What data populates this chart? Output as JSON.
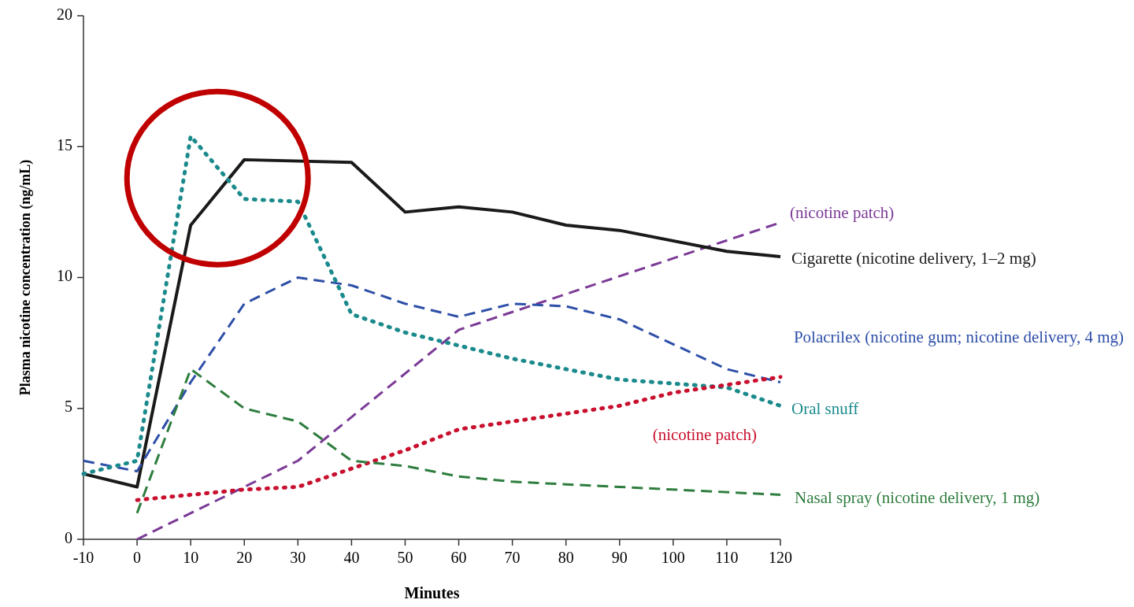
{
  "chart_data": {
    "type": "line",
    "xlabel": "Minutes",
    "ylabel": "Plasma nicotine concentration (ng/mL)",
    "xlim": [
      -10,
      120
    ],
    "ylim": [
      0,
      20
    ],
    "xticks": [
      -10,
      0,
      10,
      20,
      30,
      40,
      50,
      60,
      70,
      80,
      90,
      100,
      110,
      120
    ],
    "yticks": [
      0,
      5,
      10,
      15,
      20
    ],
    "grid": false,
    "series": [
      {
        "name": "(nicotine patch)",
        "color": "#7b3a96",
        "line_style": "dashed",
        "x": [
          0,
          30,
          60,
          120
        ],
        "values": [
          0,
          3,
          8,
          12.1
        ]
      },
      {
        "name": "Cigarette (nicotine delivery, 1–2 mg)",
        "color": "#1a1a1a",
        "line_style": "solid",
        "x": [
          -10,
          0,
          10,
          20,
          40,
          50,
          60,
          70,
          80,
          90,
          110,
          120
        ],
        "values": [
          2.5,
          2,
          12,
          14.5,
          14.4,
          12.5,
          12.7,
          12.5,
          12,
          11.8,
          11,
          10.8
        ]
      },
      {
        "name": "Polacrilex (nicotine gum; nicotine delivery, 4 mg)",
        "color": "#2e4fa8",
        "line_style": "dashed",
        "x": [
          -10,
          0,
          10,
          20,
          30,
          40,
          50,
          60,
          70,
          80,
          90,
          110,
          120
        ],
        "values": [
          3,
          2.6,
          6,
          9,
          10,
          9.7,
          9,
          8.5,
          9,
          8.9,
          8.4,
          6.5,
          6
        ]
      },
      {
        "name": "Oral snuff",
        "color": "#1b8a8c",
        "line_style": "dotted",
        "x": [
          -10,
          0,
          10,
          20,
          30,
          40,
          50,
          60,
          70,
          80,
          90,
          110,
          120
        ],
        "values": [
          2.5,
          3,
          15.4,
          13,
          12.9,
          8.6,
          7.9,
          7.4,
          6.9,
          6.5,
          6.1,
          5.8,
          5.1
        ]
      },
      {
        "name": "(nicotine patch)",
        "color": "#c8102e",
        "line_style": "dotted",
        "x": [
          0,
          10,
          20,
          30,
          40,
          50,
          60,
          70,
          80,
          90,
          100,
          120
        ],
        "values": [
          1.5,
          1.7,
          1.9,
          2,
          2.7,
          3.4,
          4.2,
          4.5,
          4.8,
          5.1,
          5.6,
          6.2
        ]
      },
      {
        "name": "Nasal spray (nicotine delivery, 1 mg)",
        "color": "#2e7d3e",
        "line_style": "dashed",
        "x": [
          0,
          10,
          20,
          30,
          40,
          50,
          60,
          70,
          90,
          120
        ],
        "values": [
          1,
          6.5,
          5,
          4.5,
          3,
          2.8,
          2.4,
          2.2,
          2,
          1.7
        ]
      }
    ]
  }
}
